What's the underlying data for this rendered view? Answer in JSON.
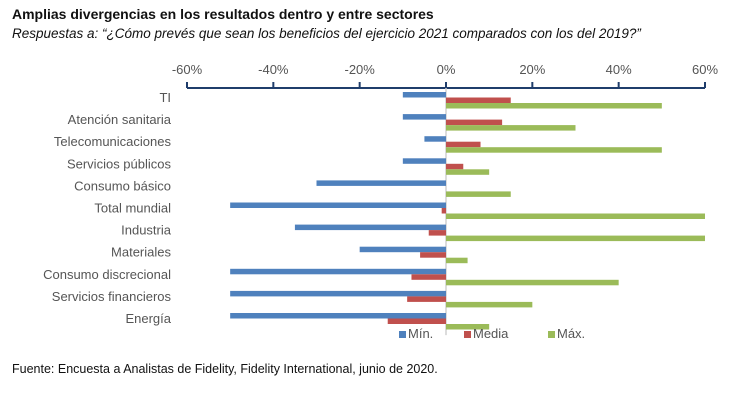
{
  "header": {
    "title": "Amplias divergencias en los resultados dentro y entre sectores",
    "subtitle": "Respuestas a: “¿Cómo prevés que sean los beneficios del ejercicio 2021 comparados con los del 2019?”"
  },
  "footer": {
    "source": "Fuente: Encuesta a Analistas de Fidelity, Fidelity International, junio de 2020."
  },
  "chart_data": {
    "type": "bar",
    "orientation": "horizontal",
    "title": "Amplias divergencias en los resultados dentro y entre sectores",
    "xlabel": "",
    "ylabel": "",
    "xlim": [
      -60,
      60
    ],
    "x_ticks": [
      -60,
      -40,
      -20,
      0,
      20,
      40,
      60
    ],
    "x_tick_labels": [
      "-60%",
      "-40%",
      "-20%",
      "0%",
      "20%",
      "40%",
      "60%"
    ],
    "x_axis_position": "top",
    "grid": false,
    "legend_position": "bottom",
    "categories": [
      "TI",
      "Atención sanitaria",
      "Telecomunicaciones",
      "Servicios públicos",
      "Consumo básico",
      "Total mundial",
      "Industria",
      "Materiales",
      "Consumo discrecional",
      "Servicios financieros",
      "Energía"
    ],
    "series": [
      {
        "name": "Mín.",
        "color": "#4f81bd",
        "values": [
          -10,
          -10,
          -5,
          -10,
          -30,
          -50,
          -35,
          -20,
          -50,
          -50,
          -50
        ]
      },
      {
        "name": "Media",
        "color": "#c0504d",
        "values": [
          15,
          13,
          8,
          4,
          0,
          -1,
          -4,
          -6,
          -8,
          -9,
          -13.5
        ]
      },
      {
        "name": "Máx.",
        "color": "#9bbb59",
        "values": [
          50,
          30,
          50,
          10,
          15,
          60,
          60,
          5,
          40,
          20,
          10
        ]
      }
    ]
  }
}
